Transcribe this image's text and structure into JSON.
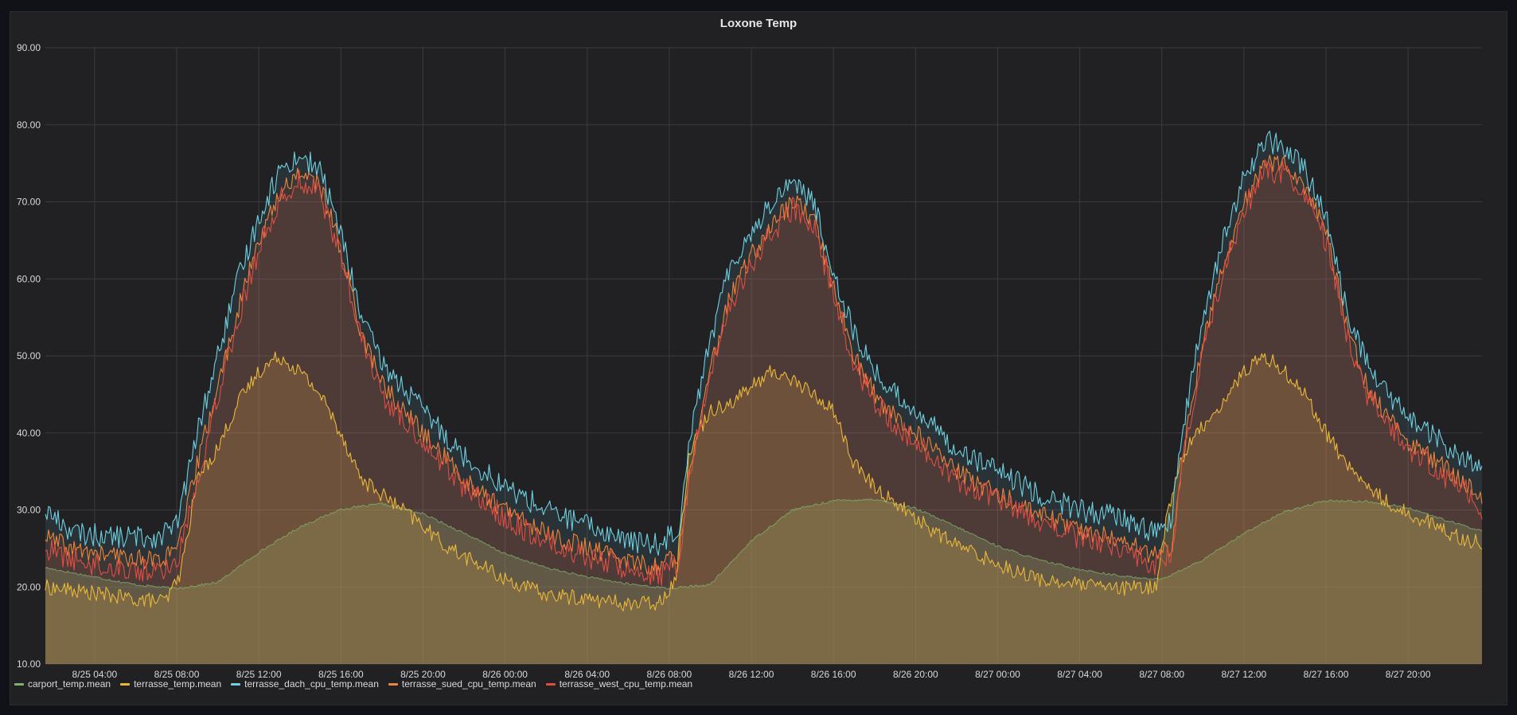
{
  "panel": {
    "title": "Loxone Temp"
  },
  "colors": {
    "carport": "#7eb26d",
    "terrasse": "#eab839",
    "dach": "#6ed0e0",
    "sued": "#ef843c",
    "west": "#e24d42"
  },
  "chart_data": {
    "type": "line",
    "title": "Loxone Temp",
    "xlabel": "",
    "ylabel": "",
    "ylim": [
      10,
      90
    ],
    "yticks": [
      "10.00",
      "20.00",
      "30.00",
      "40.00",
      "50.00",
      "60.00",
      "70.00",
      "80.00",
      "90.00"
    ],
    "xticks": [
      {
        "hour": 4,
        "label": "8/25 04:00"
      },
      {
        "hour": 8,
        "label": "8/25 08:00"
      },
      {
        "hour": 12,
        "label": "8/25 12:00"
      },
      {
        "hour": 16,
        "label": "8/25 16:00"
      },
      {
        "hour": 20,
        "label": "8/25 20:00"
      },
      {
        "hour": 24,
        "label": "8/26 00:00"
      },
      {
        "hour": 28,
        "label": "8/26 04:00"
      },
      {
        "hour": 32,
        "label": "8/26 08:00"
      },
      {
        "hour": 36,
        "label": "8/26 12:00"
      },
      {
        "hour": 40,
        "label": "8/26 16:00"
      },
      {
        "hour": 44,
        "label": "8/26 20:00"
      },
      {
        "hour": 48,
        "label": "8/27 00:00"
      },
      {
        "hour": 52,
        "label": "8/27 04:00"
      },
      {
        "hour": 56,
        "label": "8/27 08:00"
      },
      {
        "hour": 60,
        "label": "8/27 12:00"
      },
      {
        "hour": 64,
        "label": "8/27 16:00"
      },
      {
        "hour": 68,
        "label": "8/27 20:00"
      }
    ],
    "xrange": [
      1.6,
      71.6
    ],
    "series": [
      {
        "name": "carport_temp.mean",
        "x": [
          1.6,
          4,
          6,
          8,
          10,
          12,
          14,
          16,
          18,
          20,
          22,
          24,
          26,
          28,
          30,
          32,
          34,
          36,
          38,
          40,
          42,
          44,
          46,
          48,
          50,
          52,
          54,
          56,
          58,
          60,
          62,
          64,
          66,
          68,
          70,
          71.6
        ],
        "values": [
          22.5,
          21.3,
          20.3,
          19.8,
          20.6,
          24.5,
          27.8,
          30.1,
          30.8,
          29.5,
          27,
          24.3,
          22.5,
          21.3,
          20.4,
          19.8,
          20.3,
          26,
          30,
          31.2,
          31.4,
          30.2,
          27.8,
          25.3,
          23.5,
          22.3,
          21.4,
          21,
          23.5,
          27,
          29.8,
          31.2,
          31.1,
          30.3,
          28.5,
          27.3
        ]
      },
      {
        "name": "terrasse_temp.mean",
        "x": [
          1.6,
          4,
          6,
          7.5,
          8.2,
          9,
          10,
          11,
          12,
          13,
          14,
          15,
          16,
          17,
          18,
          19,
          20,
          21,
          22,
          23,
          24,
          26,
          28,
          30,
          31.5,
          32.3,
          33,
          34,
          35,
          36,
          37,
          38,
          39,
          40,
          41,
          42,
          43,
          44,
          45,
          46,
          48,
          50,
          52,
          54,
          55.7,
          56.3,
          57,
          58,
          59,
          60,
          61,
          62,
          63,
          64,
          65,
          66,
          67,
          68,
          69,
          70,
          71,
          71.6
        ],
        "values": [
          20,
          19.2,
          18.4,
          18.2,
          22,
          34,
          38,
          44,
          48,
          50,
          48,
          45,
          40,
          34,
          32,
          30,
          28,
          25.5,
          24,
          22.5,
          21,
          19,
          18.5,
          17.8,
          18,
          21,
          38,
          43,
          44,
          46,
          48,
          47,
          45,
          43,
          36,
          33,
          31,
          29,
          27,
          25.5,
          23,
          21,
          20.3,
          19.8,
          20,
          30,
          37,
          41,
          44,
          48,
          50,
          48,
          45,
          40,
          36,
          33,
          31,
          29.5,
          28.5,
          27,
          26,
          25.8
        ]
      },
      {
        "name": "terrasse_dach_cpu_temp.mean",
        "x": [
          1.6,
          3,
          5,
          7,
          8,
          9,
          10,
          11,
          12,
          13,
          14,
          15,
          16,
          17,
          18,
          19,
          20,
          22,
          24,
          26,
          28,
          30,
          31.5,
          32.5,
          33,
          34,
          35,
          36,
          37,
          38,
          39,
          40,
          41,
          42,
          43,
          44,
          46,
          48,
          50,
          52,
          54,
          55.7,
          56.5,
          57,
          58,
          59,
          60,
          61,
          62,
          63,
          64,
          65,
          66,
          67,
          68,
          69,
          70,
          71,
          71.6
        ],
        "values": [
          30,
          27,
          26.5,
          26.5,
          28,
          40,
          50,
          60,
          68,
          74,
          76,
          74,
          66,
          55,
          49,
          46,
          43,
          37,
          33,
          30,
          28,
          26,
          25.5,
          28,
          40,
          52,
          62,
          66,
          70,
          73,
          70,
          61,
          53,
          48,
          45,
          43,
          38,
          35,
          32,
          30,
          29,
          27,
          29,
          40,
          55,
          65,
          73,
          78,
          77,
          74,
          68,
          56,
          49,
          45,
          42,
          40,
          38,
          36,
          35
        ]
      },
      {
        "name": "terrasse_sued_cpu_temp.mean",
        "x": [
          1.6,
          3,
          5,
          7,
          8,
          9,
          10,
          11,
          12,
          13,
          14,
          15,
          16,
          17,
          18,
          19,
          20,
          22,
          24,
          26,
          28,
          30,
          31.5,
          32.5,
          33,
          34,
          35,
          36,
          37,
          38,
          39,
          40,
          41,
          42,
          43,
          44,
          46,
          48,
          50,
          52,
          54,
          55.7,
          56.5,
          57,
          58,
          59,
          60,
          61,
          62,
          63,
          64,
          65,
          66,
          67,
          68,
          69,
          70,
          71,
          71.6
        ],
        "values": [
          26.5,
          24.8,
          24,
          23.5,
          24.5,
          36,
          46,
          56,
          65,
          71,
          74,
          72,
          64,
          53,
          46.5,
          43,
          40,
          34,
          30,
          27,
          25,
          23.5,
          22.5,
          24.5,
          36,
          48,
          58,
          63,
          67,
          70,
          68,
          59,
          50,
          45,
          42,
          40,
          35,
          32,
          29.5,
          27.5,
          26,
          24,
          25.5,
          37,
          52,
          62,
          70,
          75,
          75,
          72,
          66,
          54,
          46,
          42,
          39,
          37,
          35,
          33,
          31
        ]
      },
      {
        "name": "terrasse_west_cpu_temp.mean",
        "x": [
          1.6,
          3,
          5,
          7,
          8,
          9,
          10,
          11,
          12,
          13,
          14,
          15,
          16,
          17,
          18,
          19,
          20,
          22,
          24,
          26,
          28,
          30,
          31.5,
          32.5,
          33,
          34,
          35,
          36,
          37,
          38,
          39,
          40,
          41,
          42,
          43,
          44,
          46,
          48,
          50,
          52,
          54,
          55.7,
          56.5,
          57,
          58,
          59,
          60,
          61,
          62,
          63,
          64,
          65,
          66,
          67,
          68,
          69,
          70,
          71,
          71.6
        ],
        "values": [
          25,
          23.5,
          22.5,
          22,
          23,
          34,
          45,
          55,
          64,
          70,
          73,
          71,
          63,
          52,
          45,
          42,
          39,
          33,
          29,
          26,
          24,
          22.5,
          21.5,
          23.5,
          35,
          47,
          57,
          62,
          66,
          69,
          67,
          58,
          49,
          44,
          41,
          39,
          34,
          31,
          28.5,
          26.5,
          25,
          23,
          24.5,
          36,
          51,
          61,
          69,
          74,
          74,
          71,
          65,
          53,
          45,
          41,
          38,
          36,
          34,
          32,
          30
        ]
      }
    ],
    "grid": true,
    "legend": "bottom-left"
  }
}
